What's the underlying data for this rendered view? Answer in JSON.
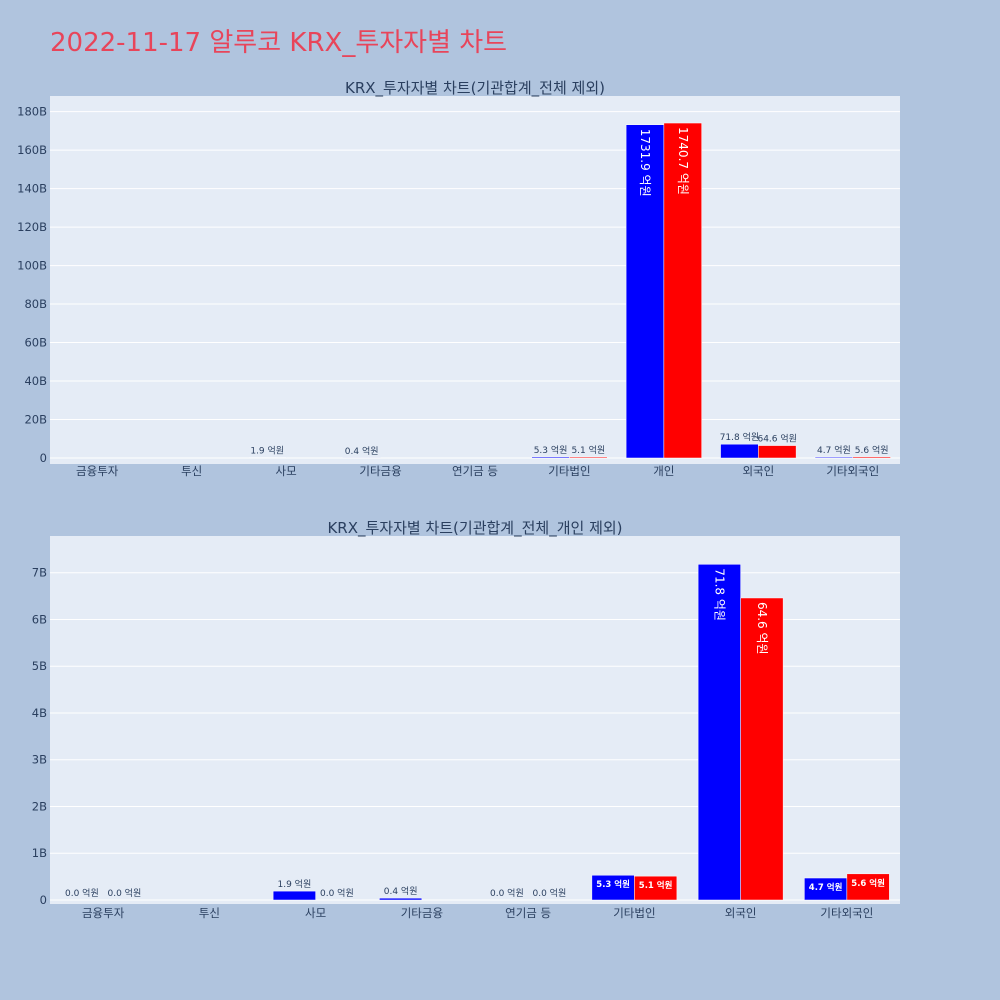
{
  "page": {
    "title": "2022-11-17 알루코 KRX_투자자별 차트"
  },
  "colors": {
    "buy": "#0000ff",
    "sell": "#ff0000",
    "plot_bg": "#e5ecf6",
    "page_bg": "#b0c4de",
    "title": "#e8455a",
    "text": "#2a3f5f"
  },
  "chart_data": [
    {
      "type": "bar",
      "title": "KRX_투자자별 차트(기관합계_전체 제외)",
      "categories": [
        "금융투자",
        "투신",
        "사모",
        "기타금융",
        "연기금 등",
        "기타법인",
        "개인",
        "외국인",
        "기타외국인"
      ],
      "series": [
        {
          "values": [
            0,
            0,
            190000000,
            40000000,
            0,
            530000000,
            173190000000,
            7180000000,
            470000000
          ]
        },
        {
          "values": [
            0,
            0,
            0,
            0,
            0,
            510000000,
            174070000000,
            6460000000,
            560000000
          ]
        }
      ],
      "bar_labels": [
        [
          "",
          "",
          "1.9 억원",
          "0.4 억원",
          "",
          "5.3 억원",
          "1731.9 억원",
          "71.8 억원",
          "4.7 억원"
        ],
        [
          "",
          "",
          "",
          "",
          "",
          "5.1 억원",
          "1740.7 억원",
          "64.6 억원",
          "5.6 억원"
        ]
      ],
      "ylim": [
        0,
        185000000000
      ],
      "yticks": [
        0,
        20000000000,
        40000000000,
        60000000000,
        80000000000,
        100000000000,
        120000000000,
        140000000000,
        160000000000,
        180000000000
      ],
      "ytick_labels": [
        "0",
        "20B",
        "40B",
        "60B",
        "80B",
        "100B",
        "120B",
        "140B",
        "160B",
        "180B"
      ],
      "grid": true,
      "xlabel": "",
      "ylabel": ""
    },
    {
      "type": "bar",
      "title": "KRX_투자자별 차트(기관합계_전체_개인 제외)",
      "categories": [
        "금융투자",
        "투신",
        "사모",
        "기타금융",
        "연기금 등",
        "기타법인",
        "외국인",
        "기타외국인"
      ],
      "series": [
        {
          "values": [
            0,
            0,
            190000000,
            40000000,
            0,
            530000000,
            7180000000,
            470000000
          ]
        },
        {
          "values": [
            0,
            0,
            0,
            0,
            0,
            510000000,
            6460000000,
            560000000
          ]
        }
      ],
      "bar_labels": [
        [
          "0.0 억원",
          "",
          "1.9 억원",
          "0.4 억원",
          "0.0 억원",
          "5.3 억원",
          "71.8 억원",
          "4.7 억원"
        ],
        [
          "0.0 억원",
          "",
          "0.0 억원",
          "",
          "0.0 억원",
          "5.1 억원",
          "64.6 억원",
          "5.6 억원"
        ]
      ],
      "ylim": [
        0,
        7700000000
      ],
      "yticks": [
        0,
        1000000000,
        2000000000,
        3000000000,
        4000000000,
        5000000000,
        6000000000,
        7000000000
      ],
      "ytick_labels": [
        "0",
        "1B",
        "2B",
        "3B",
        "4B",
        "5B",
        "6B",
        "7B"
      ],
      "grid": true,
      "xlabel": "",
      "ylabel": ""
    }
  ]
}
